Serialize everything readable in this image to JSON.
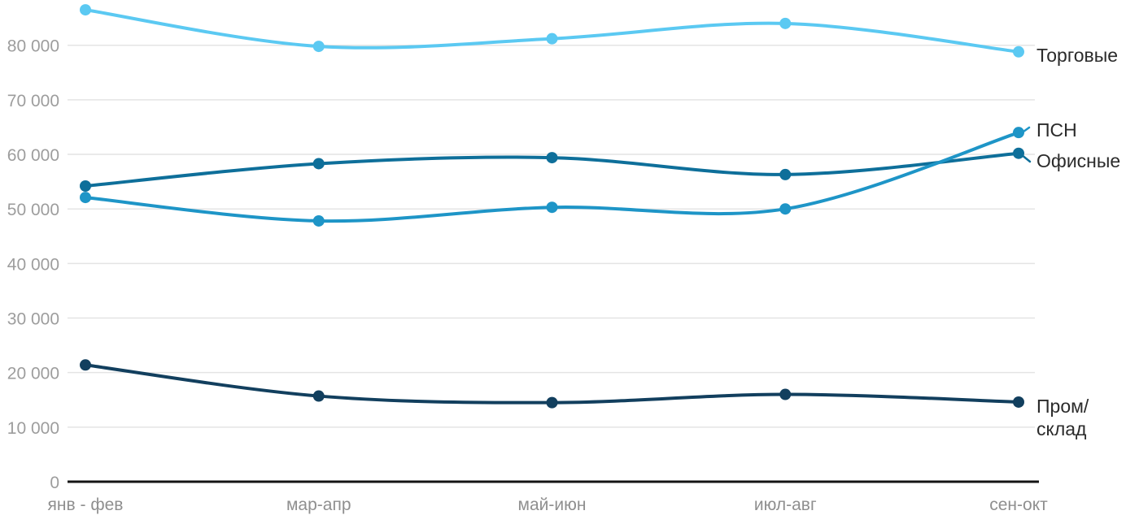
{
  "chart_data": {
    "type": "line",
    "line_shape": "spline",
    "point_markers": true,
    "grid": "horizontal",
    "legend_position": "right-end-labels",
    "title": "",
    "xlabel": "",
    "ylabel": "",
    "categories": [
      "янв - фев",
      "мар-апр",
      "май-июн",
      "июл-авг",
      "сен-окт"
    ],
    "series": [
      {
        "id": "torgovye",
        "name": "Торговые",
        "label_lines": [
          "Торговые"
        ],
        "color": "#5BC9F2",
        "values": [
          86500,
          79800,
          81200,
          84000,
          78800
        ]
      },
      {
        "id": "psn",
        "name": "ПСН",
        "label_lines": [
          "ПСН"
        ],
        "color": "#1E95C7",
        "values": [
          52100,
          47800,
          50300,
          50000,
          64000
        ]
      },
      {
        "id": "ofisnye",
        "name": "Офисные",
        "label_lines": [
          "Офисные"
        ],
        "color": "#0E6F9A",
        "values": [
          54200,
          58300,
          59400,
          56300,
          60200
        ]
      },
      {
        "id": "prom-sklad",
        "name": "Пром/склад",
        "label_lines": [
          "Пром/",
          "склад"
        ],
        "color": "#123F5E",
        "values": [
          21400,
          15700,
          14500,
          16000,
          14600
        ]
      }
    ],
    "yticks": [
      0,
      10000,
      20000,
      30000,
      40000,
      50000,
      60000,
      70000,
      80000
    ],
    "ytick_labels": [
      "0",
      "10 000",
      "20 000",
      "30 000",
      "40 000",
      "50 000",
      "60 000",
      "70 000",
      "80 000"
    ],
    "ylim": [
      0,
      88000
    ],
    "style": {
      "grid_color": "#E4E4E4",
      "axis_color": "#141414",
      "ytick_color": "#9D9D9D",
      "xtick_color": "#8F8F8F",
      "series_label_color": "#2b2b2b",
      "background": "#ffffff"
    }
  }
}
